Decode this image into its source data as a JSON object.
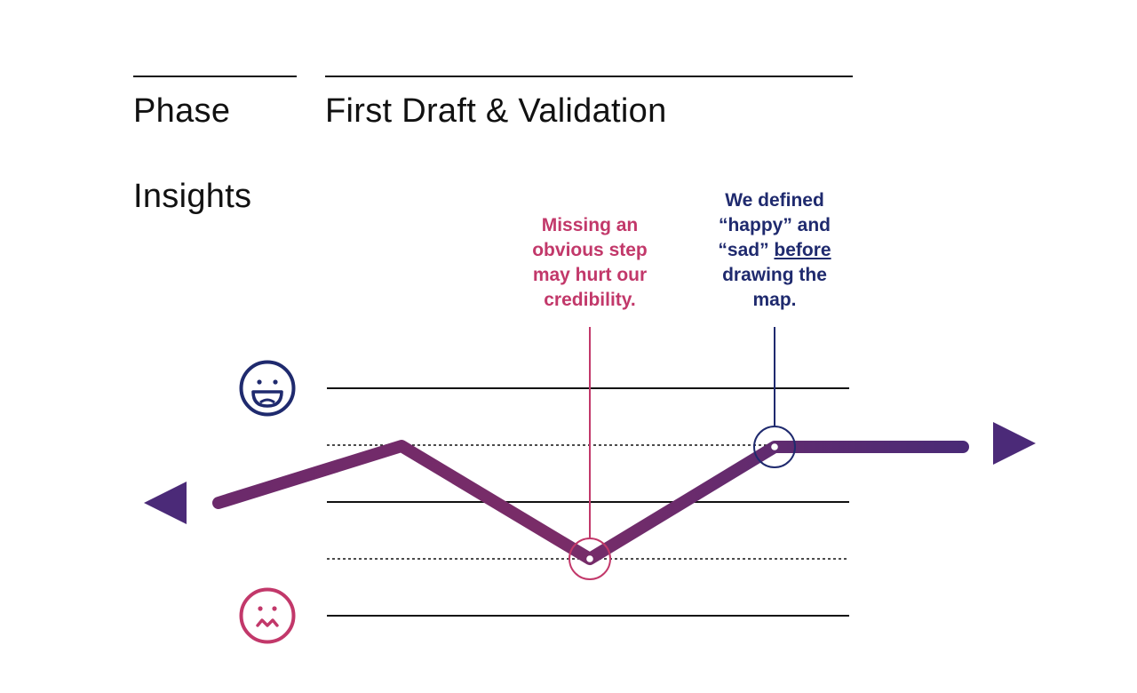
{
  "header": {
    "phase_label": "Phase",
    "phase_title": "First Draft & Validation",
    "insights_label": "Insights"
  },
  "insights": [
    {
      "lines": [
        "Missing an",
        "obvious step",
        "may hurt our",
        "credibility."
      ],
      "color": "#c2386a"
    },
    {
      "line1": "We defined",
      "line2": "“happy” and",
      "line3_before": "“sad” ",
      "line3_underlined": "before",
      "line4": "drawing the",
      "line5": "map.",
      "color": "#1f2a6e"
    }
  ],
  "colors": {
    "happy": "#1f2a6e",
    "sad": "#c2386a",
    "journey_start": "#6b2a6b",
    "journey_end": "#4a2a76",
    "arrow": "#4b2a78"
  },
  "icons": {
    "happy": "happy-face-icon",
    "sad": "sad-face-icon",
    "left_arrow": "arrow-left-icon",
    "right_arrow": "arrow-right-icon"
  }
}
